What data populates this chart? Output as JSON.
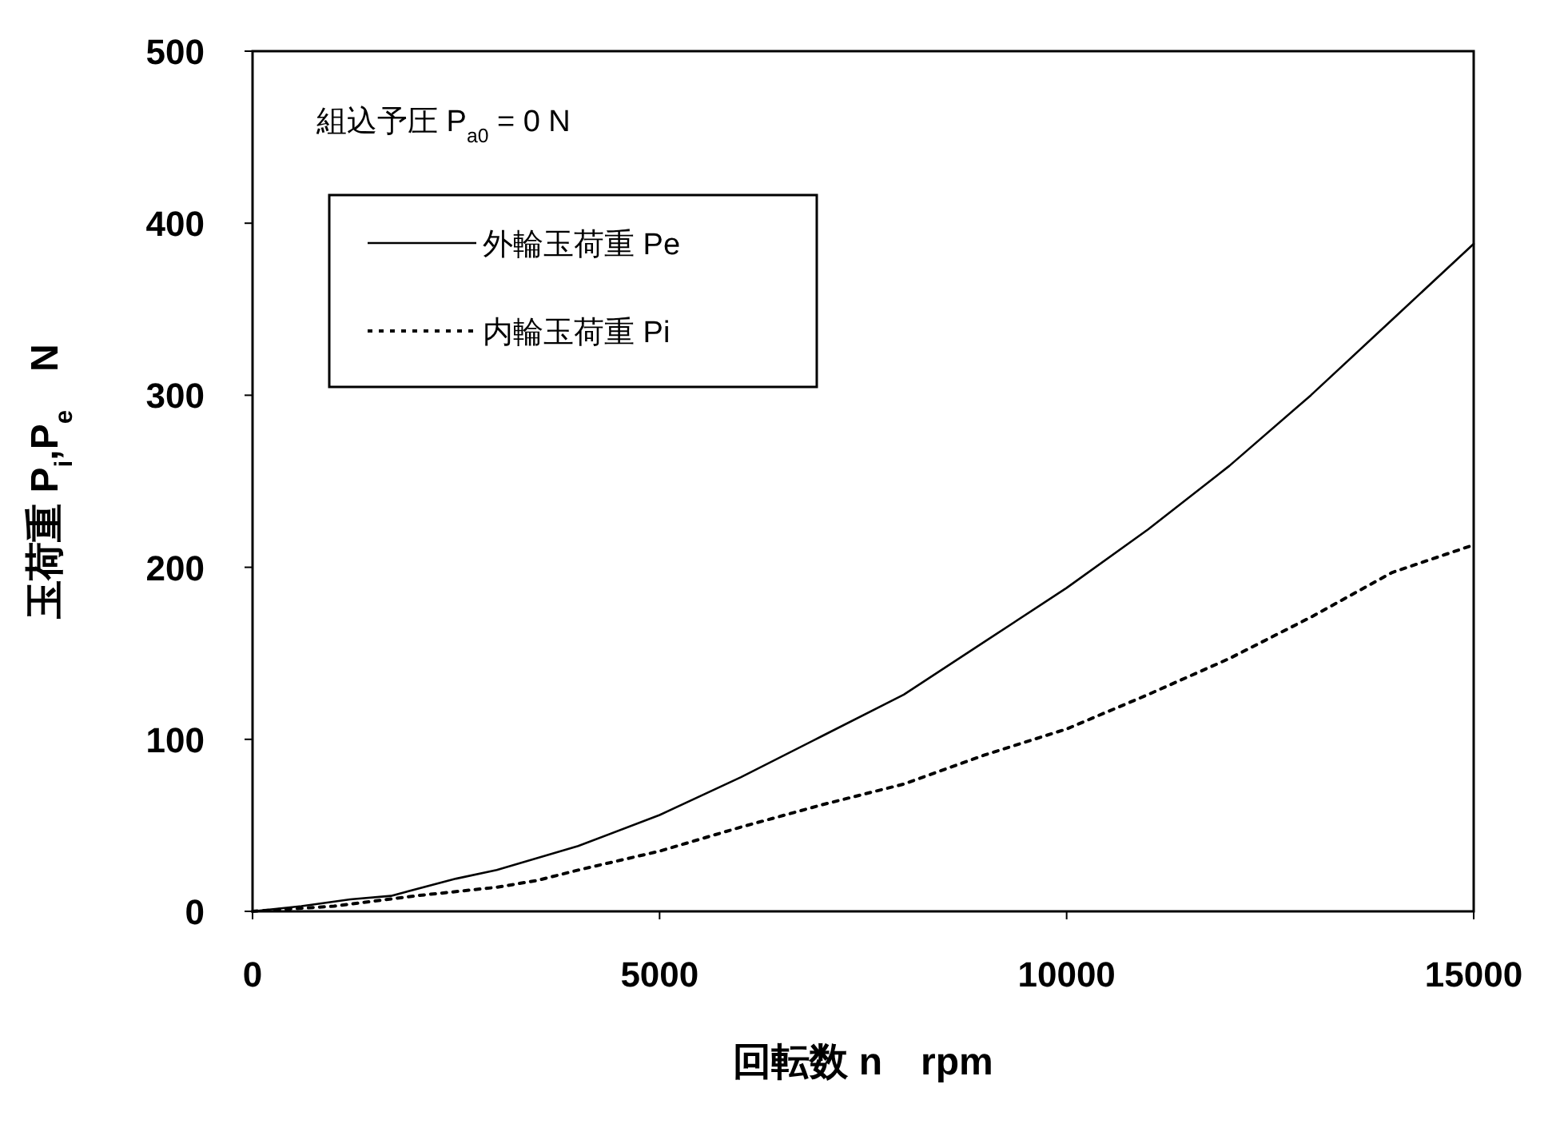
{
  "chart_data": {
    "type": "line",
    "xlabel": "回転数 n　rpm",
    "ylabel": "玉荷重 P$_{i}$,P$_{e}$　N",
    "annotations": [
      "組込予圧  P$_{a0}$ = 0 N"
    ],
    "xlim": [
      0,
      15000
    ],
    "ylim": [
      0,
      500
    ],
    "xticks": [
      0,
      5000,
      10000,
      15000
    ],
    "yticks": [
      0,
      100,
      200,
      300,
      400,
      500
    ],
    "grid": false,
    "legend": "top left",
    "marker": "none",
    "series": [
      {
        "name": "外輪玉荷重 Pe",
        "color": "#000000",
        "line_style": "solid",
        "x": [
          0,
          600,
          1200,
          1700,
          2500,
          3000,
          4000,
          5000,
          6000,
          7000,
          8000,
          9000,
          10000,
          11000,
          12000,
          13000,
          14000,
          15000
        ],
        "values": [
          0,
          3,
          7,
          9,
          19,
          24,
          38,
          56,
          78,
          102,
          126,
          157,
          188,
          222,
          259,
          300,
          344,
          388
        ]
      },
      {
        "name": "内輪玉荷重 Pi",
        "color": "#000000",
        "line_style": "dotted",
        "x": [
          0,
          1000,
          2000,
          3000,
          3500,
          4000,
          5000,
          6000,
          7000,
          8000,
          9000,
          10000,
          11000,
          12000,
          13000,
          14000,
          15000
        ],
        "values": [
          0,
          3,
          9,
          14,
          18,
          24,
          35,
          49,
          62,
          74,
          91,
          106,
          126,
          147,
          171,
          197,
          213
        ]
      }
    ]
  }
}
